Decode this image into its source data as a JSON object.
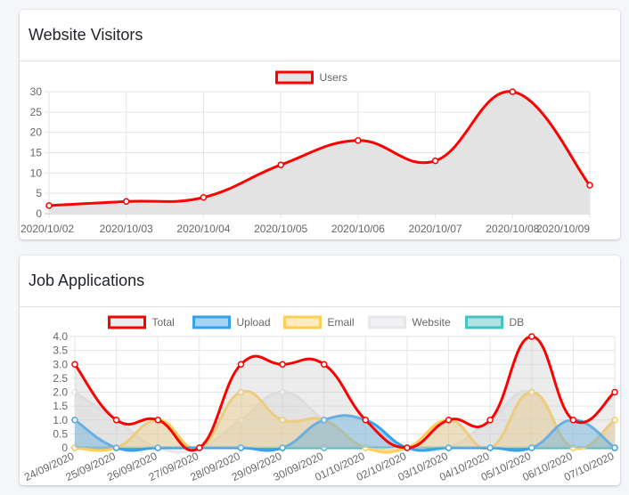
{
  "visitors_card": {
    "title": "Website Visitors"
  },
  "applications_card": {
    "title": "Job Applications"
  },
  "chart_data": [
    {
      "type": "area",
      "title": "",
      "xlabel": "",
      "ylabel": "",
      "categories": [
        "2020/10/02",
        "2020/10/03",
        "2020/10/04",
        "2020/10/05",
        "2020/10/06",
        "2020/10/07",
        "2020/10/08",
        "2020/10/09"
      ],
      "ylim": [
        0,
        30
      ],
      "yticks": [
        0,
        5,
        10,
        15,
        20,
        25,
        30
      ],
      "grid": true,
      "legend": "top-center",
      "series": [
        {
          "name": "Users",
          "values": [
            2,
            3,
            4,
            12,
            18,
            13,
            30,
            7
          ],
          "color": "#ff0000",
          "fill": "#e3e3e3"
        }
      ]
    },
    {
      "type": "area",
      "title": "",
      "xlabel": "",
      "ylabel": "",
      "categories": [
        "24/09/2020",
        "25/09/2020",
        "26/09/2020",
        "27/09/2020",
        "28/09/2020",
        "29/09/2020",
        "30/09/2020",
        "01/10/2020",
        "02/10/2020",
        "03/10/2020",
        "04/10/2020",
        "05/10/2020",
        "06/10/2020",
        "07/10/2020"
      ],
      "ylim": [
        0,
        4
      ],
      "yticks": [
        "0",
        "0.5",
        "1.0",
        "1.5",
        "2.0",
        "2.5",
        "3.0",
        "3.5",
        "4.0"
      ],
      "grid": true,
      "legend": "top-center",
      "series": [
        {
          "name": "Total",
          "values": [
            3,
            1,
            1,
            0,
            3,
            3,
            3,
            1,
            0,
            1,
            1,
            4,
            1,
            2
          ],
          "color": "#ff0000",
          "fill": "rgba(200,200,200,0.35)"
        },
        {
          "name": "Upload",
          "values": [
            1,
            0,
            0,
            0,
            0,
            0,
            1,
            1,
            0,
            0,
            0,
            0,
            1,
            0
          ],
          "color": "#36a2eb",
          "fill": "rgba(54,162,235,0.45)"
        },
        {
          "name": "Email",
          "values": [
            0,
            0,
            1,
            0,
            2,
            1,
            1,
            0,
            0,
            1,
            0,
            2,
            0,
            1
          ],
          "color": "#ffce56",
          "fill": "rgba(255,206,86,0.40)"
        },
        {
          "name": "Website",
          "values": [
            2,
            1,
            0,
            0,
            1,
            2,
            1,
            0,
            0,
            0,
            1,
            2,
            0,
            1
          ],
          "color": "#e8e8ec",
          "fill": "rgba(220,220,225,0.40)"
        },
        {
          "name": "DB",
          "values": [
            0,
            0,
            0,
            0,
            0,
            0,
            0,
            0,
            0,
            0,
            0,
            0,
            0,
            0
          ],
          "color": "#4bc0c0",
          "fill": "rgba(75,192,192,0.45)"
        }
      ]
    }
  ]
}
